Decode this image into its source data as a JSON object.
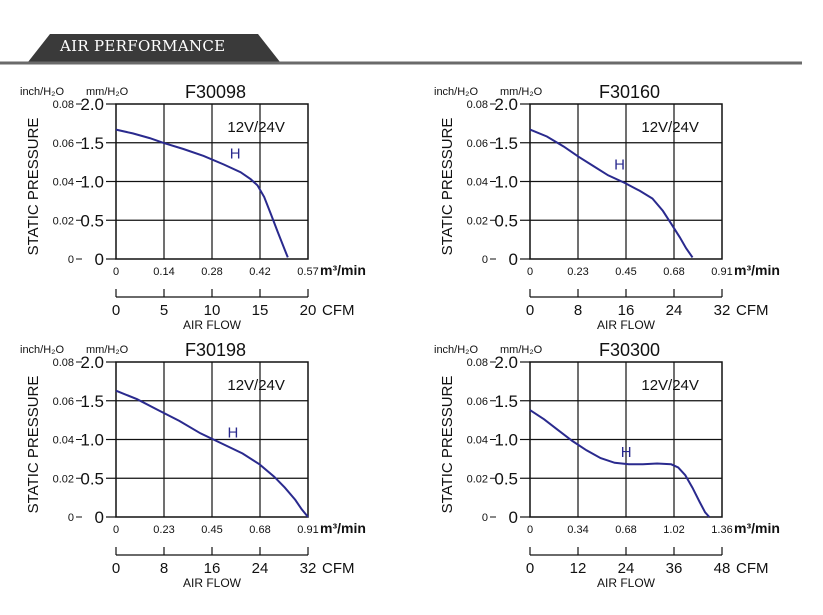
{
  "header": {
    "title": "AIR PERFORMANCE"
  },
  "colors": {
    "curve": "#2a2a8e",
    "banner": "#3a3a3a",
    "rule": "#6a6a6a",
    "grid": "#111111"
  },
  "chart_data": [
    {
      "type": "line",
      "title": "F30098",
      "voltage_label": "12V/24V",
      "curve_label": "H",
      "ylabel": "STATIC PRESSURE",
      "xlabel": "AIR FLOW",
      "unit_inch": "inch/H₂O",
      "unit_mm": "mm/H₂O",
      "unit_m3": "m³/min",
      "unit_cfm": "CFM",
      "y_mm_ticks": [
        "2.0",
        "1.5",
        "1.0",
        "0.5",
        "0"
      ],
      "y_inch_ticks": [
        "0.08",
        "0.06",
        "0.04",
        "0.02",
        "0"
      ],
      "x_m3_ticks": [
        "0",
        "0.14",
        "0.28",
        "0.42",
        "0.57"
      ],
      "x_cfm_ticks": [
        "0",
        "5",
        "10",
        "15",
        "20"
      ],
      "xlim": [
        0,
        0.57
      ],
      "ylim": [
        0,
        2.0
      ],
      "series": [
        {
          "name": "H",
          "x": [
            0,
            0.05,
            0.1,
            0.14,
            0.2,
            0.26,
            0.32,
            0.37,
            0.4,
            0.42,
            0.44,
            0.46,
            0.48,
            0.5,
            0.51
          ],
          "y": [
            1.67,
            1.62,
            1.56,
            1.5,
            1.42,
            1.33,
            1.22,
            1.12,
            1.03,
            0.95,
            0.8,
            0.58,
            0.35,
            0.13,
            0.02
          ]
        }
      ]
    },
    {
      "type": "line",
      "title": "F30160",
      "voltage_label": "12V/24V",
      "curve_label": "H",
      "ylabel": "STATIC PRESSURE",
      "xlabel": "AIR FLOW",
      "unit_inch": "inch/H₂O",
      "unit_mm": "mm/H₂O",
      "unit_m3": "m³/min",
      "unit_cfm": "CFM",
      "y_mm_ticks": [
        "2.0",
        "1.5",
        "1.0",
        "0.5",
        "0"
      ],
      "y_inch_ticks": [
        "0.08",
        "0.06",
        "0.04",
        "0.02",
        "0"
      ],
      "x_m3_ticks": [
        "0",
        "0.23",
        "0.45",
        "0.68",
        "0.91"
      ],
      "x_cfm_ticks": [
        "0",
        "8",
        "16",
        "24",
        "32"
      ],
      "xlim": [
        0,
        0.91
      ],
      "ylim": [
        0,
        2.0
      ],
      "series": [
        {
          "name": "H",
          "x": [
            0,
            0.08,
            0.16,
            0.23,
            0.3,
            0.37,
            0.45,
            0.52,
            0.58,
            0.63,
            0.67,
            0.71,
            0.74,
            0.77
          ],
          "y": [
            1.67,
            1.58,
            1.45,
            1.32,
            1.2,
            1.08,
            0.98,
            0.88,
            0.78,
            0.62,
            0.45,
            0.28,
            0.14,
            0.02
          ]
        }
      ]
    },
    {
      "type": "line",
      "title": "F30198",
      "voltage_label": "12V/24V",
      "curve_label": "H",
      "ylabel": "STATIC PRESSURE",
      "xlabel": "AIR FLOW",
      "unit_inch": "inch/H₂O",
      "unit_mm": "mm/H₂O",
      "unit_m3": "m³/min",
      "unit_cfm": "CFM",
      "y_mm_ticks": [
        "2.0",
        "1.5",
        "1.0",
        "0.5",
        "0"
      ],
      "y_inch_ticks": [
        "0.08",
        "0.06",
        "0.04",
        "0.02",
        "0"
      ],
      "x_m3_ticks": [
        "0",
        "0.23",
        "0.45",
        "0.68",
        "0.91"
      ],
      "x_cfm_ticks": [
        "0",
        "8",
        "16",
        "24",
        "32"
      ],
      "xlim": [
        0,
        0.91
      ],
      "ylim": [
        0,
        2.0
      ],
      "series": [
        {
          "name": "H",
          "x": [
            0,
            0.1,
            0.2,
            0.3,
            0.4,
            0.5,
            0.6,
            0.68,
            0.75,
            0.8,
            0.85,
            0.88,
            0.91
          ],
          "y": [
            1.63,
            1.52,
            1.38,
            1.24,
            1.08,
            0.95,
            0.82,
            0.68,
            0.52,
            0.38,
            0.22,
            0.1,
            0.0
          ]
        }
      ]
    },
    {
      "type": "line",
      "title": "F30300",
      "voltage_label": "12V/24V",
      "curve_label": "H",
      "ylabel": "STATIC PRESSURE",
      "xlabel": "AIR FLOW",
      "unit_inch": "inch/H₂O",
      "unit_mm": "mm/H₂O",
      "unit_m3": "m³/min",
      "unit_cfm": "CFM",
      "y_mm_ticks": [
        "2.0",
        "1.5",
        "1.0",
        "0.5",
        "0"
      ],
      "y_inch_ticks": [
        "0.08",
        "0.06",
        "0.04",
        "0.02",
        "0"
      ],
      "x_m3_ticks": [
        "0",
        "0.34",
        "0.68",
        "1.02",
        "1.36"
      ],
      "x_cfm_ticks": [
        "0",
        "12",
        "24",
        "36",
        "48"
      ],
      "xlim": [
        0,
        1.36
      ],
      "ylim": [
        0,
        2.0
      ],
      "series": [
        {
          "name": "H",
          "x": [
            0,
            0.1,
            0.2,
            0.3,
            0.4,
            0.5,
            0.6,
            0.7,
            0.8,
            0.9,
            1.0,
            1.05,
            1.1,
            1.15,
            1.2,
            1.24,
            1.27
          ],
          "y": [
            1.38,
            1.26,
            1.12,
            0.98,
            0.86,
            0.76,
            0.7,
            0.68,
            0.68,
            0.69,
            0.68,
            0.64,
            0.54,
            0.38,
            0.2,
            0.06,
            0.0
          ]
        }
      ]
    }
  ]
}
